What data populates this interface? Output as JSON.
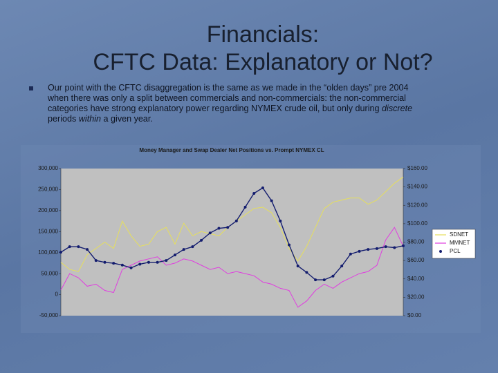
{
  "slide": {
    "title_lines": [
      "Financials:",
      "CFTC Data: Explanatory or Not?"
    ],
    "bullet": [
      "Our point with the CFTC disaggregation is the same as we made in the “olden days” pre 2004 when there was only a split between commercials and non-commercials: the non-commercial categories have strong explanatory power regarding NYMEX crude oil, but only during ",
      "discrete",
      " periods ",
      "within",
      " a given year."
    ]
  },
  "chart_data": {
    "type": "line",
    "title": "Money Manager and Swap Dealer Net Positions vs. Prompt NYMEX CL",
    "categories": [
      null,
      null,
      null,
      null,
      null,
      null,
      null,
      null,
      null,
      null,
      null,
      null,
      null,
      null,
      null,
      null,
      null,
      null,
      null,
      null,
      null,
      null,
      null,
      null,
      null,
      null,
      null,
      null,
      null,
      null,
      null,
      null,
      null,
      null,
      null,
      null,
      null,
      null,
      null,
      null
    ],
    "series": [
      {
        "name": "SDNET",
        "color": "#e6df5c",
        "values": [
          77000,
          60000,
          55000,
          95000,
          110000,
          125000,
          110000,
          175000,
          140000,
          115000,
          120000,
          150000,
          160000,
          120000,
          170000,
          140000,
          150000,
          145000,
          140000,
          160000,
          175000,
          190000,
          205000,
          208000,
          195000,
          160000,
          110000,
          80000,
          115000,
          160000,
          205000,
          220000,
          225000,
          230000,
          230000,
          215000,
          225000,
          245000,
          265000,
          280000
        ]
      },
      {
        "name": "MMNET",
        "color": "#e03ce0",
        "values": [
          11000,
          50000,
          40000,
          20000,
          25000,
          10000,
          5000,
          60000,
          70000,
          80000,
          85000,
          90000,
          70000,
          75000,
          85000,
          80000,
          70000,
          60000,
          65000,
          50000,
          55000,
          50000,
          45000,
          30000,
          25000,
          15000,
          10000,
          -30000,
          -15000,
          10000,
          25000,
          15000,
          30000,
          40000,
          50000,
          55000,
          70000,
          130000,
          160000,
          115000
        ]
      },
      {
        "name": "PCL",
        "color": "#131c6e",
        "axis": "y2",
        "values": [
          69,
          75,
          75,
          72,
          60,
          58,
          57,
          55,
          52,
          56,
          58,
          58,
          60,
          66,
          72,
          75,
          82,
          90,
          95,
          96,
          103,
          118,
          133,
          139,
          125,
          103,
          77,
          54,
          47,
          39,
          39,
          43,
          54,
          67,
          70,
          72,
          73,
          75,
          74,
          76
        ]
      }
    ],
    "ylim": [
      -50000,
      300000
    ],
    "yticks": [
      {
        "value": -50000,
        "label": "-50,000"
      },
      0,
      {
        "value": 50000,
        "label": "50,000"
      },
      {
        "value": 100000,
        "label": "100,000"
      },
      {
        "value": 150000,
        "label": "150,000"
      },
      {
        "value": 200000,
        "label": "200,000"
      },
      {
        "value": 250000,
        "label": "250,000"
      },
      {
        "value": 300000,
        "label": "300,000"
      }
    ],
    "y2lim": [
      0,
      160
    ],
    "y2ticks": [
      {
        "value": 0,
        "label": "$0.00"
      },
      {
        "value": 20,
        "label": "$20.00"
      },
      {
        "value": 40,
        "label": "$40.00"
      },
      {
        "value": 60,
        "label": "$60.00"
      },
      {
        "value": 80,
        "label": "$80.00"
      },
      {
        "value": 100,
        "label": "$100.00"
      },
      {
        "value": 120,
        "label": "$120.00"
      },
      {
        "value": 140,
        "label": "$140.00"
      },
      {
        "value": 160,
        "label": "$160.00"
      }
    ],
    "grid": false,
    "legend": "right"
  }
}
